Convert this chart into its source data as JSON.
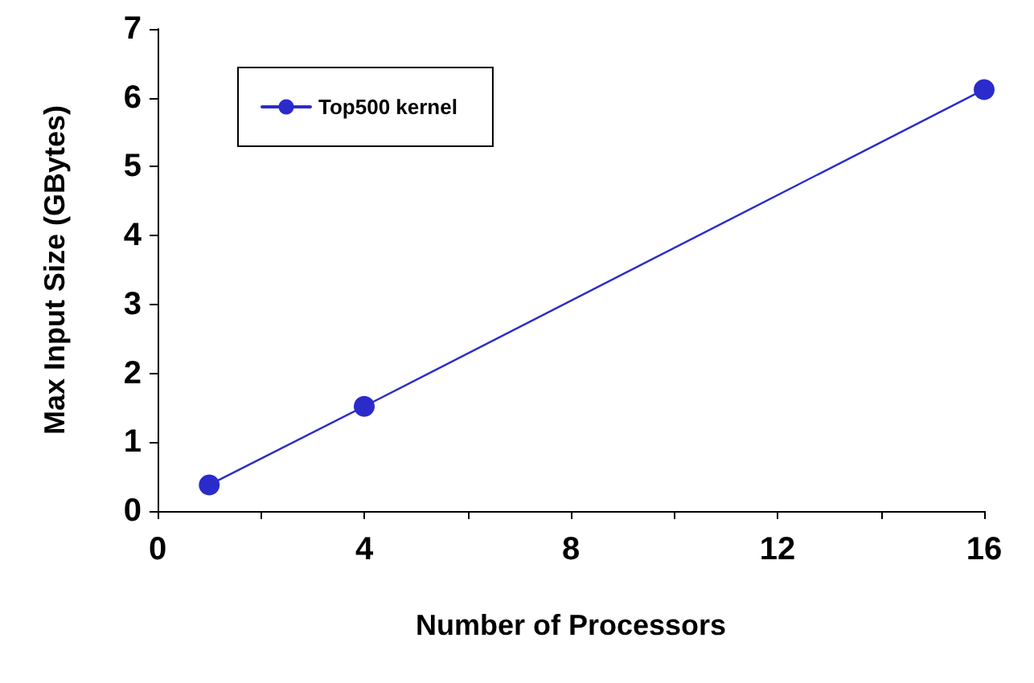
{
  "chart_data": {
    "type": "line",
    "xlabel": "Number of Processors",
    "ylabel": "Max Input Size (GBytes)",
    "x": [
      1,
      4,
      16
    ],
    "series": [
      {
        "name": "Top500 kernel",
        "color": "#2b2bcc",
        "values": [
          0.38,
          1.52,
          6.12
        ]
      }
    ],
    "xlim": [
      0,
      16
    ],
    "xticks": [
      0,
      {
        "value": 2,
        "label": null
      },
      4,
      {
        "value": 6,
        "label": null
      },
      8,
      {
        "value": 10,
        "label": null
      },
      12,
      {
        "value": 14,
        "label": null
      },
      16
    ],
    "ylim": [
      0,
      7
    ],
    "yticks": [
      0,
      1,
      2,
      3,
      4,
      5,
      6,
      7
    ],
    "grid": false,
    "legend": "top left",
    "marker": "circle",
    "line_style": "solid"
  }
}
